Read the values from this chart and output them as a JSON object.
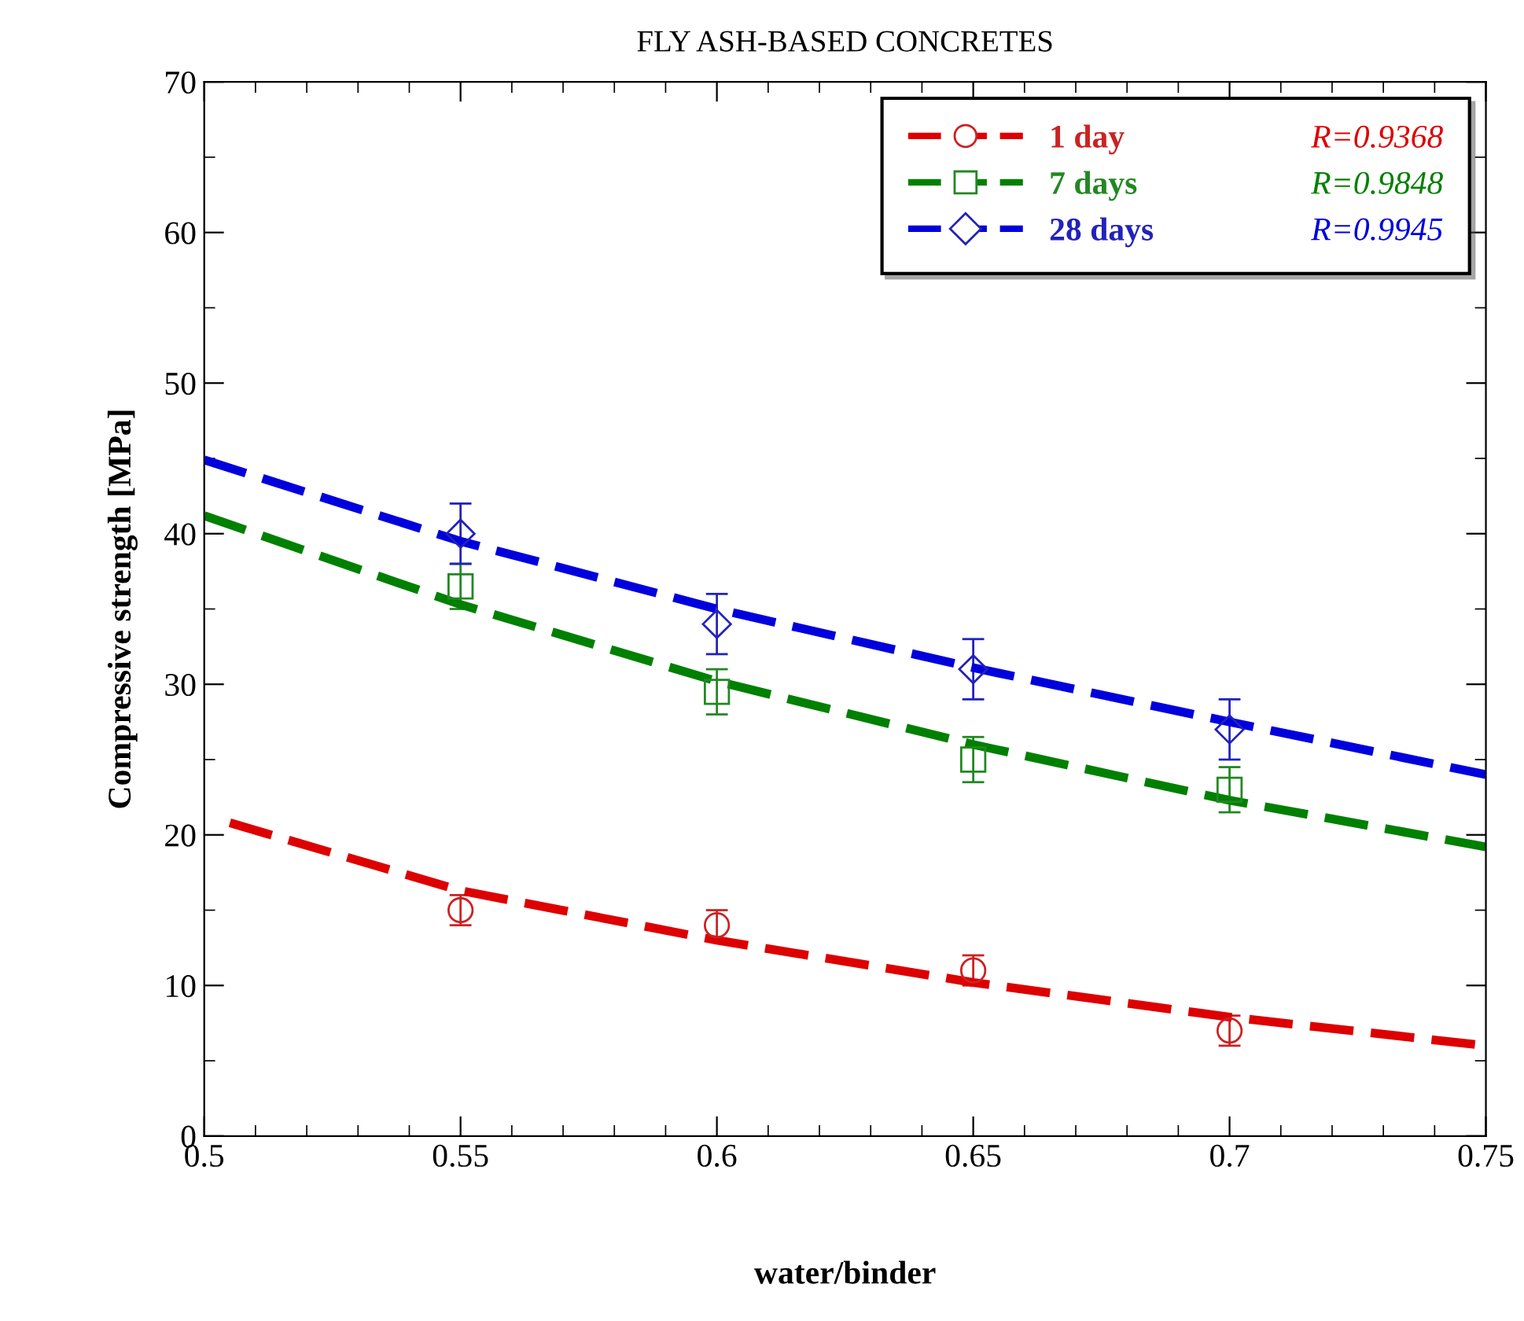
{
  "chart_data": {
    "type": "scatter",
    "title": "FLY ASH-BASED CONCRETES",
    "xlabel": "water/binder",
    "ylabel": "Compressive strength [MPa]",
    "x": [
      0.55,
      0.6,
      0.65,
      0.7
    ],
    "series": [
      {
        "name": "1 day",
        "color": "#cc2222",
        "marker": "circle",
        "values": [
          15,
          14,
          11,
          7
        ],
        "errors": [
          1,
          1,
          1,
          1
        ]
      },
      {
        "name": "7 days",
        "color": "#228822",
        "marker": "square",
        "values": [
          36.5,
          29.5,
          25,
          23
        ],
        "errors": [
          1.5,
          1.5,
          1.5,
          1.5
        ]
      },
      {
        "name": "28 days",
        "color": "#2222bb",
        "marker": "diamond",
        "values": [
          40,
          34,
          31,
          27
        ],
        "errors": [
          2,
          2,
          2,
          2
        ]
      },
      {
        "name": "R=0.9368",
        "type": "line",
        "color": "#dd0000",
        "line_style": "dashed",
        "x": [
          0.505,
          0.55,
          0.6,
          0.65,
          0.7,
          0.75
        ],
        "values": [
          20.8,
          16.3,
          13,
          10.2,
          7.9,
          6
        ]
      },
      {
        "name": "R=0.9848",
        "type": "line",
        "color": "#008000",
        "line_style": "dashed",
        "x": [
          0.5,
          0.55,
          0.6,
          0.65,
          0.7,
          0.75
        ],
        "values": [
          41.2,
          35.3,
          30.2,
          26,
          22.3,
          19.2
        ]
      },
      {
        "name": "R=0.9945",
        "type": "line",
        "color": "#0000dd",
        "line_style": "dashed",
        "x": [
          0.5,
          0.55,
          0.6,
          0.65,
          0.7,
          0.75
        ],
        "values": [
          44.9,
          39.5,
          35,
          31.1,
          27.5,
          24
        ]
      }
    ],
    "xlim": [
      0.5,
      0.75
    ],
    "xticks": [
      0.5,
      {
        "value": 0.51,
        "label": null
      },
      {
        "value": 0.52,
        "label": null
      },
      {
        "value": 0.53,
        "label": null
      },
      {
        "value": 0.54,
        "label": null
      },
      0.55,
      {
        "value": 0.56,
        "label": null
      },
      {
        "value": 0.57,
        "label": null
      },
      {
        "value": 0.58,
        "label": null
      },
      {
        "value": 0.59,
        "label": null
      },
      0.6,
      {
        "value": 0.61,
        "label": null
      },
      {
        "value": 0.62,
        "label": null
      },
      {
        "value": 0.63,
        "label": null
      },
      {
        "value": 0.64,
        "label": null
      },
      0.65,
      {
        "value": 0.66,
        "label": null
      },
      {
        "value": 0.67,
        "label": null
      },
      {
        "value": 0.68,
        "label": null
      },
      {
        "value": 0.69,
        "label": null
      },
      0.7,
      {
        "value": 0.71,
        "label": null
      },
      {
        "value": 0.72,
        "label": null
      },
      {
        "value": 0.73,
        "label": null
      },
      {
        "value": 0.74,
        "label": null
      },
      0.75
    ],
    "ylim": [
      0,
      70
    ],
    "yticks": [
      0,
      {
        "value": 5,
        "label": null
      },
      10,
      {
        "value": 15,
        "label": null
      },
      20,
      {
        "value": 25,
        "label": null
      },
      30,
      {
        "value": 35,
        "label": null
      },
      40,
      {
        "value": 45,
        "label": null
      },
      50,
      {
        "value": 55,
        "label": null
      },
      60,
      {
        "value": 65,
        "label": null
      },
      70
    ],
    "grid": false,
    "legend": "top right"
  }
}
